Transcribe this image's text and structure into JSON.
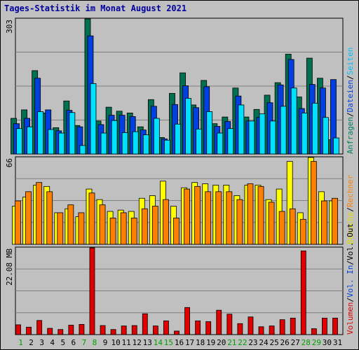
{
  "title": "Tages-Statistik im Monat August 2021",
  "chart_data": [
    {
      "type": "bar",
      "panel": "requests",
      "max_label": "303",
      "ymax": 303,
      "categories": [
        "1",
        "2",
        "3",
        "4",
        "5",
        "6",
        "7",
        "8",
        "9",
        "10",
        "11",
        "12",
        "13",
        "14",
        "15",
        "16",
        "17",
        "18",
        "19",
        "20",
        "21",
        "22",
        "23",
        "24",
        "25",
        "26",
        "27",
        "28",
        "29",
        "30",
        "31"
      ],
      "weekend": [
        "1",
        "7",
        "8",
        "14",
        "15",
        "21",
        "22",
        "28",
        "29"
      ],
      "series": [
        {
          "name": "Anfragen",
          "color": "#007050",
          "values": [
            80,
            99,
            187,
            92,
            59,
            119,
            64,
            303,
            74,
            105,
            96,
            92,
            61,
            122,
            37,
            136,
            182,
            110,
            165,
            68,
            83,
            148,
            83,
            100,
            132,
            160,
            224,
            128,
            215,
            170,
            32
          ]
        },
        {
          "name": "Dateien",
          "color": "#0040e0",
          "values": [
            68,
            80,
            170,
            99,
            52,
            98,
            61,
            265,
            66,
            87,
            87,
            84,
            54,
            107,
            34,
            111,
            153,
            104,
            151,
            62,
            73,
            130,
            74,
            82,
            115,
            155,
            212,
            102,
            156,
            148,
            167
          ]
        },
        {
          "name": "Seiten",
          "color": "#00e0ff",
          "values": [
            57,
            61,
            95,
            55,
            47,
            93,
            19,
            158,
            47,
            75,
            48,
            50,
            43,
            80,
            31,
            67,
            125,
            56,
            95,
            47,
            57,
            110,
            74,
            90,
            74,
            107,
            148,
            92,
            114,
            82,
            36
          ]
        }
      ],
      "right_labels": [
        "Anfragen",
        "Dateien",
        "Seiten"
      ]
    },
    {
      "type": "bar",
      "panel": "visits",
      "max_label": "66",
      "ymax": 66,
      "categories": [
        "1",
        "2",
        "3",
        "4",
        "5",
        "6",
        "7",
        "8",
        "9",
        "10",
        "11",
        "12",
        "13",
        "14",
        "15",
        "16",
        "17",
        "18",
        "19",
        "20",
        "21",
        "22",
        "23",
        "24",
        "25",
        "26",
        "27",
        "28",
        "29",
        "30",
        "31"
      ],
      "series": [
        {
          "name": "Besuche",
          "color": "#ffff00",
          "values": [
            29,
            36,
            45,
            44,
            24,
            27,
            21,
            42,
            34,
            25,
            26,
            25,
            35,
            37,
            48,
            29,
            43,
            47,
            46,
            45,
            45,
            37,
            45,
            45,
            34,
            42,
            63,
            24,
            66,
            40,
            33
          ]
        },
        {
          "name": "Rechner",
          "color": "#ff8000",
          "values": [
            33,
            40,
            47,
            40,
            24,
            30,
            24,
            39,
            30,
            20,
            24,
            20,
            27,
            29,
            34,
            20,
            42,
            44,
            40,
            40,
            40,
            34,
            46,
            44,
            32,
            25,
            27,
            19,
            63,
            33,
            35
          ]
        }
      ],
      "right_labels": [
        "Besuche",
        "Rechner"
      ]
    },
    {
      "type": "bar",
      "panel": "volume",
      "max_label": "22.08 MB",
      "ymax": 22.08,
      "unit": "MB",
      "categories": [
        "1",
        "2",
        "3",
        "4",
        "5",
        "6",
        "7",
        "8",
        "9",
        "10",
        "11",
        "12",
        "13",
        "14",
        "15",
        "16",
        "17",
        "18",
        "19",
        "20",
        "21",
        "22",
        "23",
        "24",
        "25",
        "26",
        "27",
        "28",
        "29",
        "30",
        "31"
      ],
      "series": [
        {
          "name": "Volumen",
          "color": "#e00000",
          "values": [
            2.5,
            1.9,
            3.6,
            1.6,
            1.3,
            2.4,
            2.6,
            22.08,
            2.3,
            1.3,
            2.2,
            2.3,
            5.3,
            2.2,
            3.5,
            0.9,
            6.9,
            3.5,
            3.3,
            6.2,
            5.2,
            2.8,
            4.5,
            2.0,
            2.2,
            3.8,
            4.2,
            21.3,
            1.5,
            4.2,
            4.2
          ]
        }
      ],
      "right_labels": [
        "Volumen",
        "Vol. In",
        "Vol. Out"
      ]
    }
  ],
  "colors": {
    "background": "#c0c0c0",
    "title": "#0000a0",
    "weekday_label": "#000000",
    "weekend_label": "#00a000",
    "grid": "#808080"
  }
}
